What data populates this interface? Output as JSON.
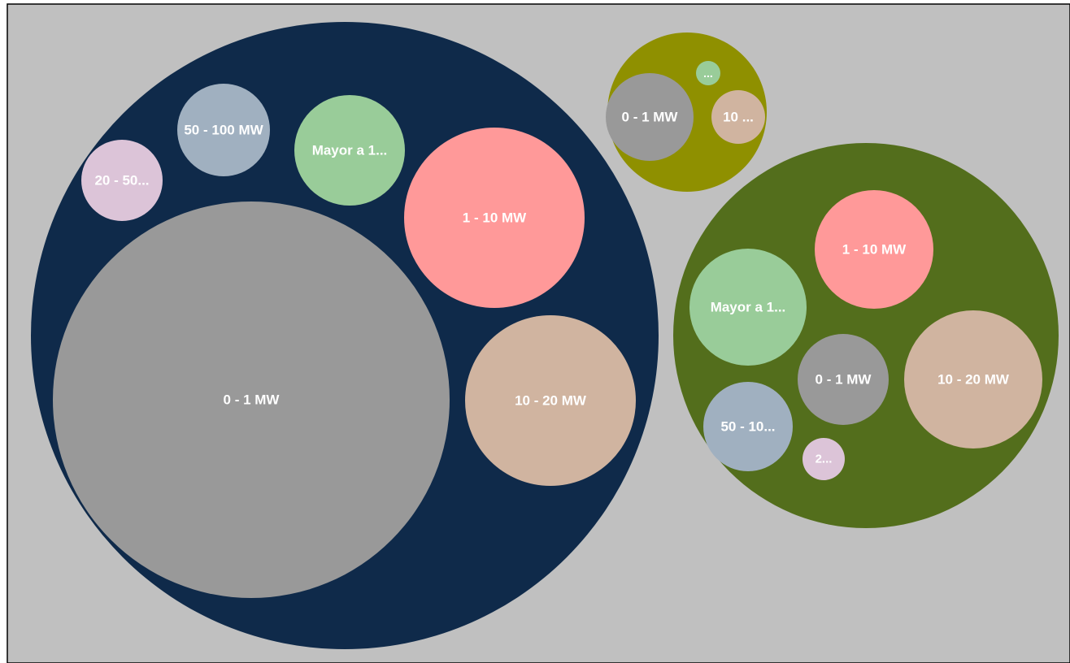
{
  "chart_data": {
    "type": "packed-bubble",
    "background_color": "#c0c0c0",
    "border_color": "#000000",
    "groups": [
      {
        "color": "#0f2a4a",
        "children": [
          {
            "label": "0 - 1 MW",
            "color": "#999999"
          },
          {
            "label": "1 - 10 MW",
            "color": "#ff9999"
          },
          {
            "label": "10 - 20 MW",
            "color": "#d0b4a0"
          },
          {
            "label": "Mayor a 1...",
            "color": "#99cc99"
          },
          {
            "label": "50 - 100 MW",
            "color": "#a0b0c0"
          },
          {
            "label": "20 - 50...",
            "color": "#dcc4d8"
          }
        ]
      },
      {
        "color": "#8f9000",
        "children": [
          {
            "label": "0 - 1 MW",
            "color": "#999999"
          },
          {
            "label": "10 ...",
            "color": "#d0b4a0"
          },
          {
            "label": "...",
            "color": "#99cc99"
          }
        ]
      },
      {
        "color": "#536e1c",
        "children": [
          {
            "label": "1 - 10 MW",
            "color": "#ff9999"
          },
          {
            "label": "Mayor a 1...",
            "color": "#99cc99"
          },
          {
            "label": "0 - 1 MW",
            "color": "#999999"
          },
          {
            "label": "10 - 20 MW",
            "color": "#d0b4a0"
          },
          {
            "label": "50 - 10...",
            "color": "#a0b0c0"
          },
          {
            "label": "2...",
            "color": "#dcc4d8"
          }
        ]
      }
    ]
  }
}
